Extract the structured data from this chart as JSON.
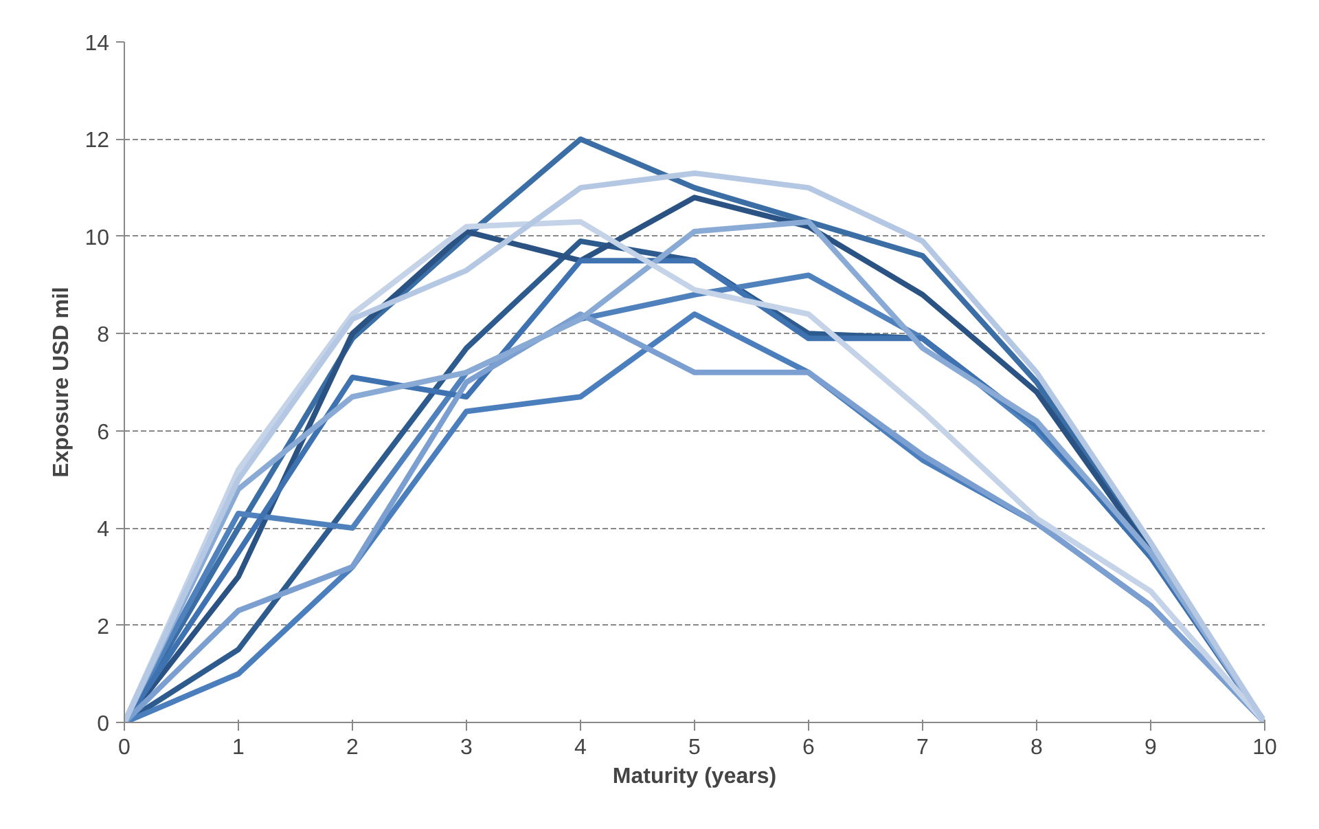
{
  "chart_data": {
    "type": "line",
    "xlabel": "Maturity (years)",
    "ylabel": "Exposure USD mil",
    "x": [
      0,
      1,
      2,
      3,
      4,
      5,
      6,
      7,
      8,
      9,
      10
    ],
    "xlim": [
      0,
      10
    ],
    "xticks": [
      0,
      1,
      2,
      3,
      4,
      5,
      6,
      7,
      8,
      9,
      10
    ],
    "ylim": [
      0,
      14
    ],
    "yticks": [
      0,
      2,
      4,
      6,
      8,
      10,
      12,
      14
    ],
    "grid": "y",
    "marker": "none",
    "line_style": "solid",
    "series": [
      {
        "color": "#3a6ea5",
        "values": [
          0,
          4.0,
          7.9,
          10.0,
          12.0,
          11.0,
          10.3,
          9.6,
          7.0,
          3.6,
          0
        ]
      },
      {
        "color": "#2e5b8e",
        "values": [
          0,
          1.5,
          4.6,
          7.7,
          9.9,
          9.5,
          8.0,
          7.9,
          6.1,
          3.4,
          0
        ]
      },
      {
        "color": "#2a5384",
        "values": [
          0,
          3.0,
          8.0,
          10.1,
          9.5,
          10.8,
          10.2,
          8.8,
          6.8,
          3.5,
          0
        ]
      },
      {
        "color": "#4a7ebd",
        "values": [
          0,
          1.0,
          3.2,
          6.4,
          6.7,
          8.4,
          7.2,
          5.4,
          4.1,
          2.4,
          0
        ]
      },
      {
        "color": "#4f81bd",
        "values": [
          0,
          4.3,
          4.0,
          7.2,
          8.3,
          8.8,
          9.2,
          7.9,
          6.0,
          3.5,
          0
        ]
      },
      {
        "color": "#3f72b0",
        "values": [
          0,
          3.5,
          7.1,
          6.7,
          9.5,
          9.5,
          7.9,
          7.9,
          6.1,
          3.4,
          0
        ]
      },
      {
        "color": "#7b9fd0",
        "values": [
          0,
          2.3,
          3.2,
          7.0,
          8.4,
          7.2,
          7.2,
          5.5,
          4.1,
          2.4,
          0
        ]
      },
      {
        "color": "#8aaad6",
        "values": [
          0,
          4.8,
          6.7,
          7.2,
          8.3,
          10.1,
          10.3,
          7.7,
          6.2,
          3.5,
          0
        ]
      },
      {
        "color": "#c5d3e8",
        "values": [
          0,
          5.2,
          8.4,
          10.2,
          10.3,
          8.9,
          8.4,
          6.4,
          4.2,
          2.7,
          0
        ]
      },
      {
        "color": "#b4c7e3",
        "values": [
          0,
          5.0,
          8.3,
          9.3,
          11.0,
          11.3,
          11.0,
          9.9,
          7.2,
          3.7,
          0
        ]
      }
    ]
  }
}
